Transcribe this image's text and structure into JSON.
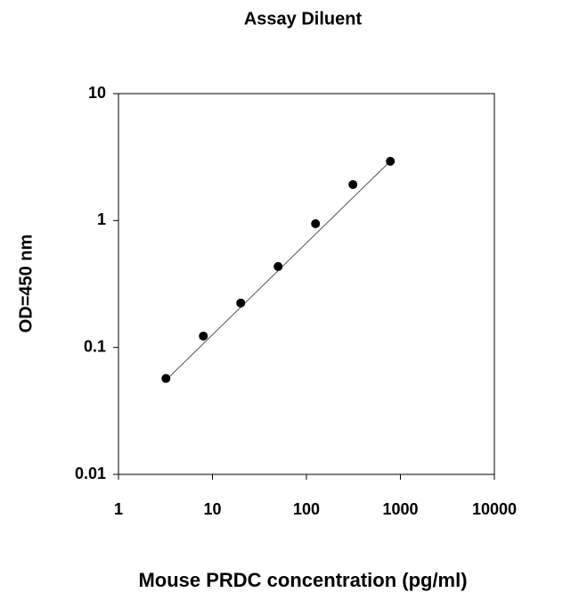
{
  "chart_data": {
    "type": "scatter",
    "title": "Assay Diluent",
    "x_label": "Mouse PRDC concentration (pg/ml)",
    "y_label": "OD=450 nm",
    "x": [
      3.2,
      8,
      20,
      50,
      125,
      312.5,
      781.25
    ],
    "series": [
      {
        "color": "#000000",
        "values": [
          0.057,
          0.123,
          0.224,
          0.434,
          0.944,
          1.92,
          2.93
        ]
      }
    ],
    "fit": {
      "color": "#555555",
      "x": [
        3.1,
        830
      ],
      "y": [
        0.054,
        3.07
      ]
    },
    "log_x": true,
    "log_y": true,
    "grid": false,
    "xlim": [
      1,
      10000
    ],
    "xticks": [
      1,
      10,
      100,
      1000,
      10000
    ],
    "ylim": [
      0.01,
      10
    ],
    "yticks": [
      0.01,
      0.1,
      1,
      10
    ]
  }
}
